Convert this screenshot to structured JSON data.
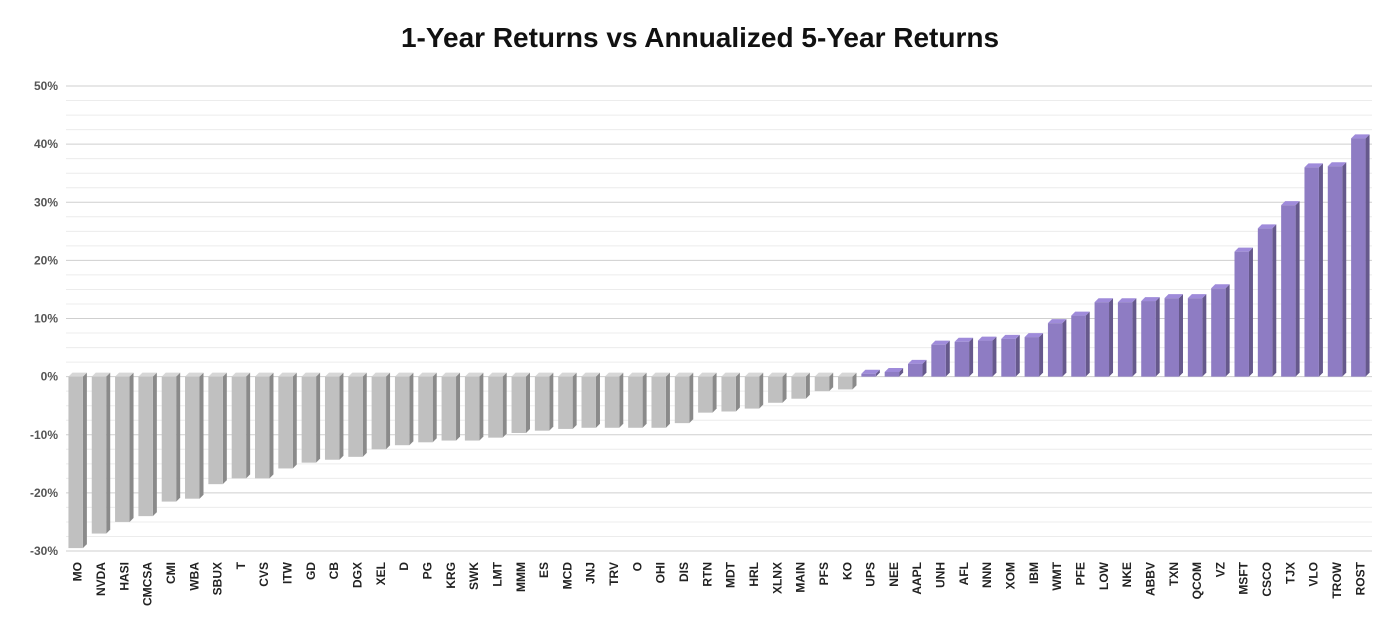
{
  "chart_data": {
    "type": "bar",
    "title": "1-Year Returns vs Annualized 5-Year Returns",
    "xlabel": "",
    "ylabel": "",
    "ylim": [
      -0.3,
      0.5
    ],
    "y_ticks": [
      "50%",
      "40%",
      "30%",
      "20%",
      "10%",
      "0%",
      "-10%",
      "-20%",
      "-30%"
    ],
    "y_tick_values": [
      0.5,
      0.4,
      0.3,
      0.2,
      0.1,
      0.0,
      -0.1,
      -0.2,
      -0.3
    ],
    "minor_grid_step": 0.025,
    "grid": true,
    "legend": "none",
    "style": "3d-bars",
    "colors": {
      "negative": "#c0c0c0",
      "positive": "#8e7cc3",
      "grid_major": "#cfcfcf",
      "grid_minor": "#ececec"
    },
    "categories": [
      "MO",
      "NVDA",
      "HASI",
      "CMCSA",
      "CMI",
      "WBA",
      "SBUX",
      "T",
      "CVS",
      "ITW",
      "GD",
      "CB",
      "DGX",
      "XEL",
      "D",
      "PG",
      "KRG",
      "SWK",
      "LMT",
      "MMM",
      "ES",
      "MCD",
      "JNJ",
      "TRV",
      "O",
      "OHI",
      "DIS",
      "RTN",
      "MDT",
      "HRL",
      "XLNX",
      "MAIN",
      "PFS",
      "KO",
      "UPS",
      "NEE",
      "AAPL",
      "UNH",
      "AFL",
      "NNN",
      "XOM",
      "IBM",
      "WMT",
      "PFE",
      "LOW",
      "NKE",
      "ABBV",
      "TXN",
      "QCOM",
      "VZ",
      "MSFT",
      "CSCO",
      "TJX",
      "VLO",
      "TROW",
      "ROST"
    ],
    "values": [
      -0.295,
      -0.27,
      -0.25,
      -0.24,
      -0.215,
      -0.21,
      -0.185,
      -0.175,
      -0.175,
      -0.158,
      -0.148,
      -0.143,
      -0.138,
      -0.125,
      -0.118,
      -0.113,
      -0.11,
      -0.11,
      -0.105,
      -0.097,
      -0.093,
      -0.09,
      -0.088,
      -0.088,
      -0.088,
      -0.088,
      -0.08,
      -0.062,
      -0.06,
      -0.055,
      -0.045,
      -0.038,
      -0.025,
      -0.022,
      0.005,
      0.008,
      0.022,
      0.055,
      0.06,
      0.062,
      0.065,
      0.068,
      0.092,
      0.105,
      0.128,
      0.128,
      0.13,
      0.135,
      0.135,
      0.152,
      0.215,
      0.255,
      0.295,
      0.36,
      0.362,
      0.41
    ]
  }
}
